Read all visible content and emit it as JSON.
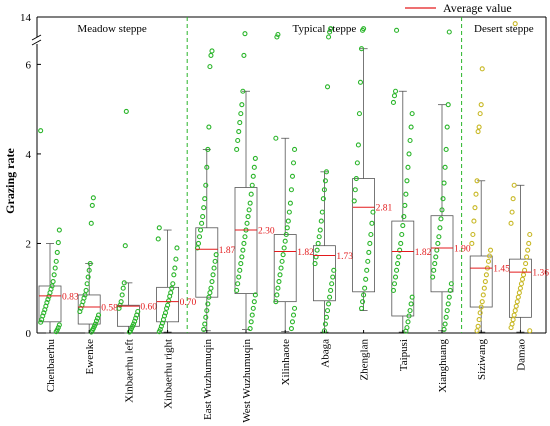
{
  "chart_data": {
    "type": "boxplot",
    "title": "",
    "xlabel": "",
    "ylabel": "Grazing rate",
    "yticks": [
      0,
      2,
      4,
      6
    ],
    "ybreak": {
      "below": 6.5,
      "resume_tick": 14
    },
    "legend": {
      "label": "Average value",
      "color": "#e31a1c",
      "placement": "top-right"
    },
    "groups": [
      {
        "label": "Meadow steppe",
        "color": "#2ab52a",
        "sites": [
          0,
          1,
          2,
          3
        ]
      },
      {
        "label": "Typical steppe",
        "color": "#2ab52a",
        "sites": [
          4,
          5,
          6,
          7,
          8,
          9,
          10
        ]
      },
      {
        "label": "Desert steppe",
        "color": "#c8b825",
        "sites": [
          11,
          12
        ]
      }
    ],
    "sites": [
      {
        "name": "Chenbaerhu",
        "mean": 0.83,
        "mean_label": "0.83",
        "q1": 0.25,
        "q3": 1.05,
        "wlo": 0.0,
        "whi": 2.0,
        "points": [
          4.52,
          2.3,
          2.02,
          1.8,
          1.6,
          1.45,
          1.3,
          1.15,
          1.05,
          0.98,
          0.9,
          0.82,
          0.75,
          0.68,
          0.6,
          0.52,
          0.45,
          0.38,
          0.3,
          0.24,
          0.18,
          0.12,
          0.07,
          0.03
        ]
      },
      {
        "name": "Ewenke",
        "mean": 0.58,
        "mean_label": "0.58",
        "q1": 0.2,
        "q3": 0.85,
        "wlo": 0.0,
        "whi": 1.55,
        "points": [
          3.02,
          2.85,
          2.45,
          1.55,
          1.4,
          1.25,
          1.1,
          0.95,
          0.85,
          0.78,
          0.7,
          0.62,
          0.55,
          0.48,
          0.4,
          0.33,
          0.27,
          0.2,
          0.15,
          0.1,
          0.06,
          0.02
        ]
      },
      {
        "name": "Xinbaerhu left",
        "mean": 0.6,
        "mean_label": "0.60",
        "q1": 0.15,
        "q3": 0.62,
        "wlo": 0.0,
        "whi": 1.12,
        "points": [
          4.95,
          1.95,
          1.12,
          1.0,
          0.85,
          0.7,
          0.62,
          0.55,
          0.48,
          0.4,
          0.33,
          0.26,
          0.2,
          0.15,
          0.1,
          0.05,
          0.02
        ]
      },
      {
        "name": "Xinbaerhu right",
        "mean": 0.7,
        "mean_label": "0.70",
        "q1": 0.25,
        "q3": 1.02,
        "wlo": 0.02,
        "whi": 2.3,
        "points": [
          2.35,
          2.1,
          1.9,
          1.65,
          1.45,
          1.3,
          1.1,
          1.0,
          0.9,
          0.82,
          0.72,
          0.62,
          0.55,
          0.45,
          0.38,
          0.3,
          0.22,
          0.15,
          0.08,
          0.03
        ]
      },
      {
        "name": "East Wuzhumuqin",
        "mean": 1.87,
        "mean_label": "1.87",
        "q1": 0.8,
        "q3": 2.35,
        "wlo": 0.05,
        "whi": 4.1,
        "points": [
          6.3,
          6.2,
          5.95,
          4.6,
          4.1,
          3.7,
          3.3,
          3.0,
          2.8,
          2.6,
          2.45,
          2.3,
          2.15,
          2.0,
          1.9,
          1.75,
          1.6,
          1.45,
          1.3,
          1.15,
          1.0,
          0.9,
          0.8,
          0.65,
          0.5,
          0.35,
          0.2,
          0.08
        ]
      },
      {
        "name": "West Wuzhumuqin",
        "mean": 2.3,
        "mean_label": "2.30",
        "q1": 0.88,
        "q3": 3.25,
        "wlo": 0.08,
        "whi": 5.4,
        "points": [
          13.0,
          6.2,
          5.4,
          5.1,
          4.9,
          4.7,
          4.5,
          4.3,
          4.1,
          3.9,
          3.7,
          3.5,
          3.3,
          3.1,
          2.9,
          2.75,
          2.6,
          2.45,
          2.3,
          2.15,
          2.0,
          1.85,
          1.7,
          1.55,
          1.4,
          1.25,
          1.1,
          0.95,
          0.85,
          0.7,
          0.55,
          0.4,
          0.25,
          0.1
        ]
      },
      {
        "name": "Xilinhaote",
        "mean": 1.82,
        "mean_label": "1.82",
        "q1": 0.7,
        "q3": 2.2,
        "wlo": 0.03,
        "whi": 4.35,
        "points": [
          12.95,
          6.6,
          4.35,
          4.1,
          3.8,
          3.5,
          3.2,
          2.9,
          2.7,
          2.5,
          2.35,
          2.2,
          2.05,
          1.9,
          1.75,
          1.6,
          1.45,
          1.3,
          1.15,
          1.0,
          0.85,
          0.7,
          0.55,
          0.4,
          0.25,
          0.1
        ]
      },
      {
        "name": "Abaga",
        "mean": 1.73,
        "mean_label": "1.73",
        "q1": 0.72,
        "q3": 1.95,
        "wlo": 0.02,
        "whi": 3.6,
        "points": [
          13.3,
          13.1,
          6.6,
          5.5,
          3.6,
          3.4,
          3.2,
          3.0,
          2.7,
          2.5,
          2.3,
          2.15,
          2.0,
          1.85,
          1.7,
          1.55,
          1.4,
          1.25,
          1.1,
          0.95,
          0.8,
          0.65,
          0.5,
          0.35,
          0.2,
          0.05
        ]
      },
      {
        "name": "Zhenglan",
        "mean": 2.81,
        "mean_label": "2.81",
        "q1": 0.92,
        "q3": 3.45,
        "wlo": 0.5,
        "whi": 6.35,
        "points": [
          13.3,
          13.2,
          6.35,
          5.6,
          4.9,
          4.2,
          3.8,
          3.45,
          3.2,
          2.95,
          2.7,
          2.45,
          2.2,
          2.0,
          1.8,
          1.6,
          1.4,
          1.2,
          1.0,
          0.85,
          0.7,
          0.55
        ]
      },
      {
        "name": "Taipusi",
        "mean": 1.82,
        "mean_label": "1.82",
        "q1": 0.38,
        "q3": 2.5,
        "wlo": 0.02,
        "whi": 5.4,
        "points": [
          13.2,
          5.4,
          5.3,
          5.15,
          4.9,
          4.6,
          4.3,
          4.0,
          3.7,
          3.4,
          3.1,
          2.85,
          2.6,
          2.4,
          2.2,
          2.0,
          1.85,
          1.7,
          1.55,
          1.4,
          1.25,
          1.1,
          0.95,
          0.8,
          0.65,
          0.5,
          0.38,
          0.25,
          0.12,
          0.04
        ]
      },
      {
        "name": "Xianghuang",
        "mean": 1.9,
        "mean_label": "1.90",
        "q1": 0.92,
        "q3": 2.62,
        "wlo": 0.05,
        "whi": 5.1,
        "points": [
          13.1,
          5.1,
          4.6,
          4.1,
          3.7,
          3.35,
          3.0,
          2.75,
          2.55,
          2.35,
          2.15,
          2.0,
          1.85,
          1.7,
          1.55,
          1.4,
          1.25,
          1.1,
          0.95,
          0.8,
          0.65,
          0.5,
          0.35,
          0.2,
          0.08
        ]
      },
      {
        "name": "Siziwang",
        "mean": 1.45,
        "mean_label": "1.45",
        "q1": 0.58,
        "q3": 1.72,
        "wlo": 0.02,
        "whi": 3.4,
        "points": [
          5.9,
          5.1,
          4.9,
          4.6,
          4.5,
          3.4,
          3.1,
          2.8,
          2.5,
          2.2,
          2.0,
          1.85,
          1.72,
          1.6,
          1.45,
          1.3,
          1.15,
          1.0,
          0.85,
          0.7,
          0.58,
          0.45,
          0.3,
          0.15,
          0.05
        ]
      },
      {
        "name": "Damao",
        "mean": 1.36,
        "mean_label": "1.36",
        "q1": 0.35,
        "q3": 1.65,
        "wlo": 0.02,
        "whi": 3.3,
        "points": [
          13.6,
          3.3,
          3.0,
          2.7,
          2.45,
          2.2,
          2.0,
          1.85,
          1.7,
          1.55,
          1.4,
          1.3,
          1.2,
          1.1,
          1.0,
          0.9,
          0.8,
          0.7,
          0.6,
          0.5,
          0.4,
          0.3,
          0.2,
          0.12,
          0.05
        ]
      }
    ]
  }
}
